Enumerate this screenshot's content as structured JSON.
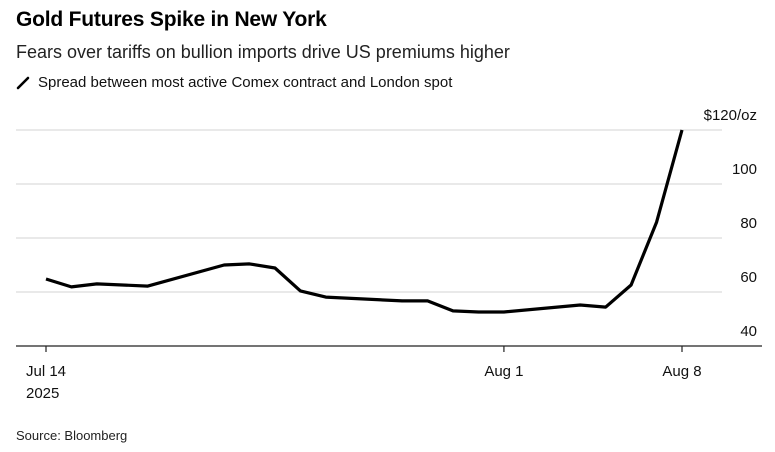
{
  "header": {
    "title": "Gold Futures Spike in New York",
    "subtitle": "Fears over tariffs on bullion imports drive US premiums higher"
  },
  "legend": {
    "icon": "line-swatch-icon",
    "label": "Spread between most active Comex contract and London spot"
  },
  "footer": {
    "source": "Source: Bloomberg"
  },
  "chart_data": {
    "type": "line",
    "title": "Gold Futures Spike in New York",
    "subtitle": "Fears over tariffs on bullion imports drive US premiums higher",
    "xlabel": "",
    "ylabel": "",
    "y_unit": "$/oz",
    "ylim": [
      40,
      120
    ],
    "y_ticks": [
      {
        "value": 120,
        "label": "$120/oz"
      },
      {
        "value": 100,
        "label": "100"
      },
      {
        "value": 80,
        "label": "80"
      },
      {
        "value": 60,
        "label": "60"
      },
      {
        "value": 40,
        "label": "40"
      }
    ],
    "x_day_range": [
      -1.2,
      27
    ],
    "x_ticks": [
      {
        "day": 0,
        "label": "Jul 14",
        "sublabel": "2025"
      },
      {
        "day": 18,
        "label": "Aug 1",
        "sublabel": ""
      },
      {
        "day": 25,
        "label": "Aug 8",
        "sublabel": ""
      }
    ],
    "grid": true,
    "y_axis_side": "right",
    "legend_position": "top-left",
    "line_color": "#000000",
    "series": [
      {
        "name": "Spread between most active Comex contract and London spot",
        "x_day": [
          0,
          1,
          2,
          4,
          7,
          8,
          9,
          10,
          11,
          14,
          15,
          16,
          17,
          18,
          21,
          22,
          23,
          24,
          25
        ],
        "x_dates": [
          "Jul 14",
          "Jul 15",
          "Jul 16",
          "Jul 18",
          "Jul 21",
          "Jul 22",
          "Jul 23",
          "Jul 24",
          "Jul 25",
          "Jul 28",
          "Jul 29",
          "Jul 30",
          "Jul 31",
          "Aug 1",
          "Aug 4",
          "Aug 5",
          "Aug 6",
          "Aug 7",
          "Aug 8"
        ],
        "values": [
          64.8,
          61.9,
          63.0,
          62.2,
          70.0,
          70.4,
          68.9,
          60.4,
          58.1,
          56.7,
          56.7,
          53.0,
          52.6,
          52.6,
          55.2,
          54.4,
          62.6,
          85.9,
          120.0
        ]
      }
    ]
  }
}
